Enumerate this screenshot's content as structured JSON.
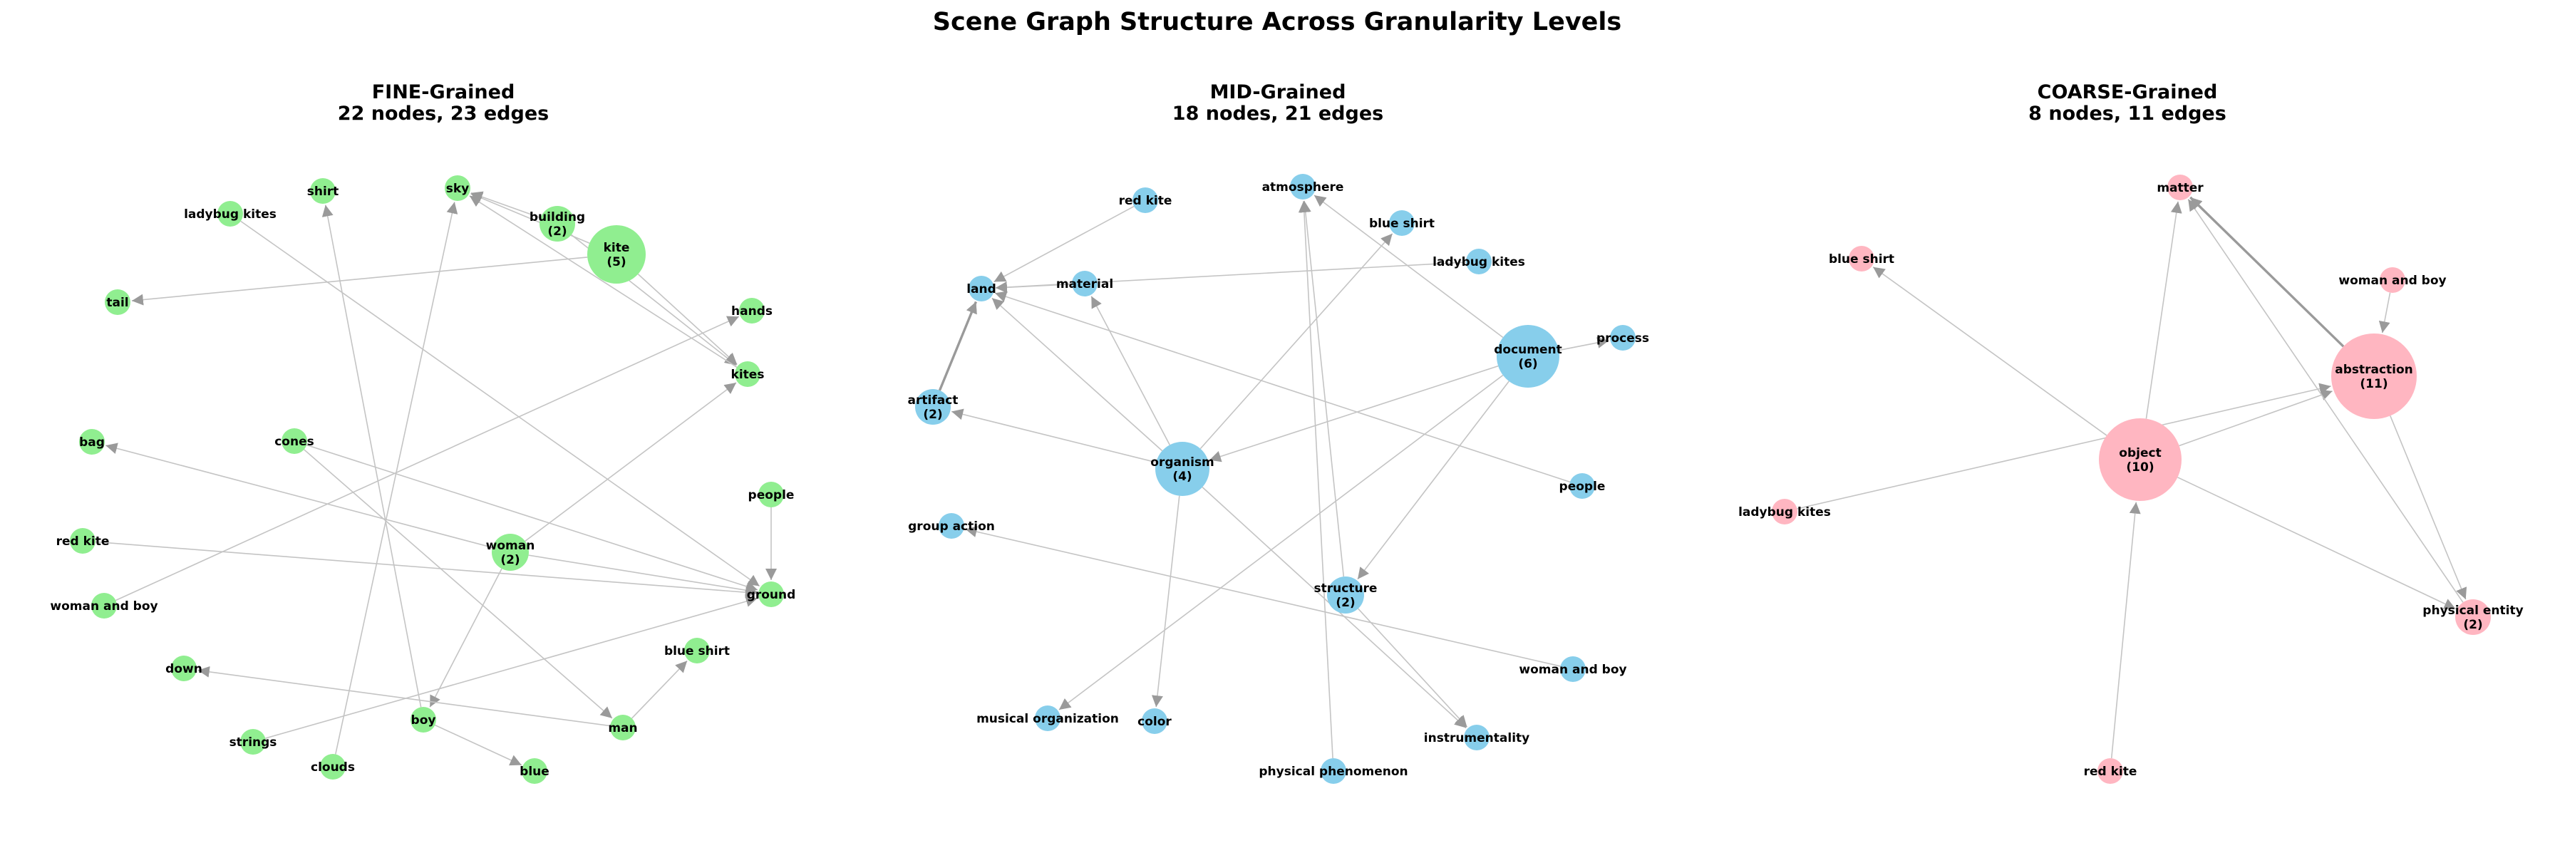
{
  "figure": {
    "title": "Scene Graph Structure Across Granularity Levels"
  },
  "panels": [
    {
      "id": "fine",
      "title_line1": "FINE-Grained",
      "title_line2": "22 nodes, 23 edges",
      "color": "#90ee90",
      "nodes": [
        {
          "id": "ladybug-kites",
          "label": "ladybug kites"
        },
        {
          "id": "shirt",
          "label": "shirt"
        },
        {
          "id": "sky",
          "label": "sky"
        },
        {
          "id": "building",
          "label": "building\n(2)"
        },
        {
          "id": "kite",
          "label": "kite\n(5)"
        },
        {
          "id": "tail",
          "label": "tail"
        },
        {
          "id": "hands",
          "label": "hands"
        },
        {
          "id": "kites",
          "label": "kites"
        },
        {
          "id": "bag",
          "label": "bag"
        },
        {
          "id": "cones",
          "label": "cones"
        },
        {
          "id": "people",
          "label": "people"
        },
        {
          "id": "red-kite",
          "label": "red kite"
        },
        {
          "id": "woman",
          "label": "woman\n(2)"
        },
        {
          "id": "ground",
          "label": "ground"
        },
        {
          "id": "woman-and-boy",
          "label": "woman and boy"
        },
        {
          "id": "blue-shirt",
          "label": "blue shirt"
        },
        {
          "id": "down",
          "label": "down"
        },
        {
          "id": "boy",
          "label": "boy"
        },
        {
          "id": "man",
          "label": "man"
        },
        {
          "id": "strings",
          "label": "strings"
        },
        {
          "id": "clouds",
          "label": "clouds"
        },
        {
          "id": "blue",
          "label": "blue"
        }
      ],
      "edges": [
        {
          "from": "kite",
          "to": "tail"
        },
        {
          "from": "kite",
          "to": "sky"
        },
        {
          "from": "kite",
          "to": "kites"
        },
        {
          "from": "building",
          "to": "sky"
        },
        {
          "from": "building",
          "to": "kites"
        },
        {
          "from": "kites",
          "to": "sky"
        },
        {
          "from": "ladybug-kites",
          "to": "ground"
        },
        {
          "from": "boy",
          "to": "shirt"
        },
        {
          "from": "clouds",
          "to": "sky"
        },
        {
          "from": "woman-and-boy",
          "to": "hands"
        },
        {
          "from": "woman",
          "to": "bag"
        },
        {
          "from": "woman",
          "to": "ground"
        },
        {
          "from": "woman",
          "to": "boy"
        },
        {
          "from": "woman",
          "to": "kites"
        },
        {
          "from": "cones",
          "to": "ground"
        },
        {
          "from": "cones",
          "to": "man"
        },
        {
          "from": "red-kite",
          "to": "ground"
        },
        {
          "from": "people",
          "to": "ground"
        },
        {
          "from": "man",
          "to": "down"
        },
        {
          "from": "man",
          "to": "blue-shirt"
        },
        {
          "from": "boy",
          "to": "blue"
        },
        {
          "from": "strings",
          "to": "ground"
        },
        {
          "from": "people",
          "to": "people"
        }
      ]
    },
    {
      "id": "mid",
      "title_line1": "MID-Grained",
      "title_line2": "18 nodes, 21 edges",
      "color": "#87ceeb",
      "nodes": [
        {
          "id": "red-kite",
          "label": "red kite"
        },
        {
          "id": "atmosphere",
          "label": "atmosphere"
        },
        {
          "id": "blue-shirt",
          "label": "blue shirt"
        },
        {
          "id": "ladybug-kites",
          "label": "ladybug kites"
        },
        {
          "id": "land",
          "label": "land"
        },
        {
          "id": "material",
          "label": "material"
        },
        {
          "id": "document",
          "label": "document\n(6)"
        },
        {
          "id": "process",
          "label": "process"
        },
        {
          "id": "artifact",
          "label": "artifact\n(2)"
        },
        {
          "id": "organism",
          "label": "organism\n(4)"
        },
        {
          "id": "people",
          "label": "people"
        },
        {
          "id": "group-action",
          "label": "group action"
        },
        {
          "id": "structure",
          "label": "structure\n(2)"
        },
        {
          "id": "woman-and-boy",
          "label": "woman and boy"
        },
        {
          "id": "musical-organization",
          "label": "musical organization"
        },
        {
          "id": "color",
          "label": "color"
        },
        {
          "id": "instrumentality",
          "label": "instrumentality"
        },
        {
          "id": "physical-phenomenon",
          "label": "physical phenomenon"
        }
      ],
      "edges": [
        {
          "from": "red-kite",
          "to": "land"
        },
        {
          "from": "ladybug-kites",
          "to": "land"
        },
        {
          "from": "people",
          "to": "land"
        },
        {
          "from": "artifact",
          "to": "land"
        },
        {
          "from": "organism",
          "to": "land"
        },
        {
          "from": "organism",
          "to": "artifact"
        },
        {
          "from": "organism",
          "to": "material"
        },
        {
          "from": "organism",
          "to": "blue-shirt"
        },
        {
          "from": "organism",
          "to": "color"
        },
        {
          "from": "organism",
          "to": "instrumentality"
        },
        {
          "from": "document",
          "to": "atmosphere"
        },
        {
          "from": "document",
          "to": "organism"
        },
        {
          "from": "document",
          "to": "process"
        },
        {
          "from": "document",
          "to": "musical-organization"
        },
        {
          "from": "document",
          "to": "structure"
        },
        {
          "from": "structure",
          "to": "atmosphere"
        },
        {
          "from": "physical-phenomenon",
          "to": "atmosphere"
        },
        {
          "from": "woman-and-boy",
          "to": "group-action"
        },
        {
          "from": "material",
          "to": "land"
        },
        {
          "from": "structure",
          "to": "instrumentality"
        },
        {
          "from": "artifact",
          "to": "land"
        }
      ]
    },
    {
      "id": "coarse",
      "title_line1": "COARSE-Grained",
      "title_line2": "8 nodes, 11 edges",
      "color": "#ffb6c1",
      "nodes": [
        {
          "id": "matter",
          "label": "matter"
        },
        {
          "id": "blue-shirt",
          "label": "blue shirt"
        },
        {
          "id": "woman-and-boy",
          "label": "woman and boy"
        },
        {
          "id": "abstraction",
          "label": "abstraction\n(11)"
        },
        {
          "id": "object",
          "label": "object\n(10)"
        },
        {
          "id": "ladybug-kites",
          "label": "ladybug kites"
        },
        {
          "id": "physical-entity",
          "label": "physical entity\n(2)"
        },
        {
          "id": "red-kite",
          "label": "red kite"
        }
      ],
      "edges": [
        {
          "from": "object",
          "to": "blue-shirt"
        },
        {
          "from": "object",
          "to": "matter"
        },
        {
          "from": "object",
          "to": "abstraction"
        },
        {
          "from": "object",
          "to": "physical-entity"
        },
        {
          "from": "ladybug-kites",
          "to": "abstraction"
        },
        {
          "from": "red-kite",
          "to": "object"
        },
        {
          "from": "abstraction",
          "to": "matter"
        },
        {
          "from": "abstraction",
          "to": "physical-entity"
        },
        {
          "from": "woman-and-boy",
          "to": "abstraction"
        },
        {
          "from": "physical-entity",
          "to": "matter"
        },
        {
          "from": "abstraction",
          "to": "matter"
        }
      ]
    }
  ]
}
